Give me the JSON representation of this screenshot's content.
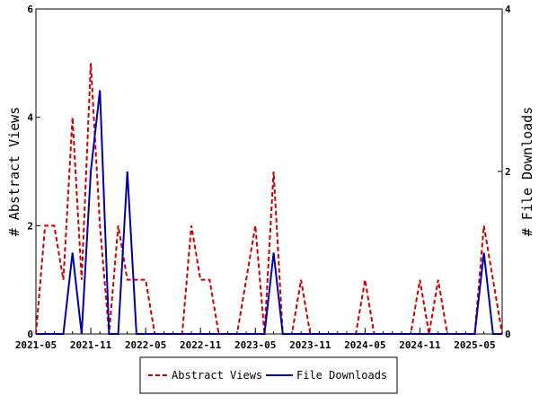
{
  "chart_data": {
    "type": "line",
    "x": [
      "2021-05",
      "2021-06",
      "2021-07",
      "2021-08",
      "2021-09",
      "2021-10",
      "2021-11",
      "2021-12",
      "2022-01",
      "2022-02",
      "2022-03",
      "2022-04",
      "2022-05",
      "2022-06",
      "2022-07",
      "2022-08",
      "2022-09",
      "2022-10",
      "2022-11",
      "2022-12",
      "2023-01",
      "2023-02",
      "2023-03",
      "2023-04",
      "2023-05",
      "2023-06",
      "2023-07",
      "2023-08",
      "2023-09",
      "2023-10",
      "2023-11",
      "2023-12",
      "2024-01",
      "2024-02",
      "2024-03",
      "2024-04",
      "2024-05",
      "2024-06",
      "2024-07",
      "2024-08",
      "2024-09",
      "2024-10",
      "2024-11",
      "2024-12",
      "2025-01",
      "2025-02",
      "2025-03",
      "2025-04",
      "2025-05",
      "2025-06",
      "2025-07",
      "2025-08"
    ],
    "series": [
      {
        "name": "Abstract Views",
        "axis": "left",
        "color": "#cc0000",
        "style": "dashed",
        "values": [
          0,
          2,
          2,
          1,
          4,
          1,
          5,
          2,
          0,
          2,
          1,
          1,
          1,
          0,
          0,
          0,
          0,
          2,
          1,
          1,
          0,
          0,
          0,
          1,
          2,
          0,
          3,
          0,
          0,
          1,
          0,
          0,
          0,
          0,
          0,
          0,
          1,
          0,
          0,
          0,
          0,
          0,
          1,
          0,
          1,
          0,
          0,
          0,
          0,
          2,
          1,
          0
        ]
      },
      {
        "name": "File Downloads",
        "axis": "right",
        "color": "#0000aa",
        "style": "solid",
        "values": [
          0,
          0,
          0,
          0,
          1,
          0,
          2,
          3,
          0,
          0,
          2,
          0,
          0,
          0,
          0,
          0,
          0,
          0,
          0,
          0,
          0,
          0,
          0,
          0,
          0,
          0,
          1,
          0,
          0,
          0,
          0,
          0,
          0,
          0,
          0,
          0,
          0,
          0,
          0,
          0,
          0,
          0,
          0,
          0,
          0,
          0,
          0,
          0,
          0,
          1,
          0,
          0
        ]
      }
    ],
    "x_tick_labels": [
      "2021-05",
      "2021-11",
      "2022-05",
      "2022-11",
      "2023-05",
      "2023-11",
      "2024-05",
      "2024-11",
      "2025-05"
    ],
    "ylabel": "# Abstract Views",
    "y2label": "# File Downloads",
    "ylim": [
      0,
      6
    ],
    "y2lim": [
      0,
      4
    ],
    "y_ticks": [
      0,
      2,
      4,
      6
    ],
    "y2_ticks": [
      0,
      2,
      4
    ],
    "grid": false,
    "legend_position": "bottom"
  }
}
